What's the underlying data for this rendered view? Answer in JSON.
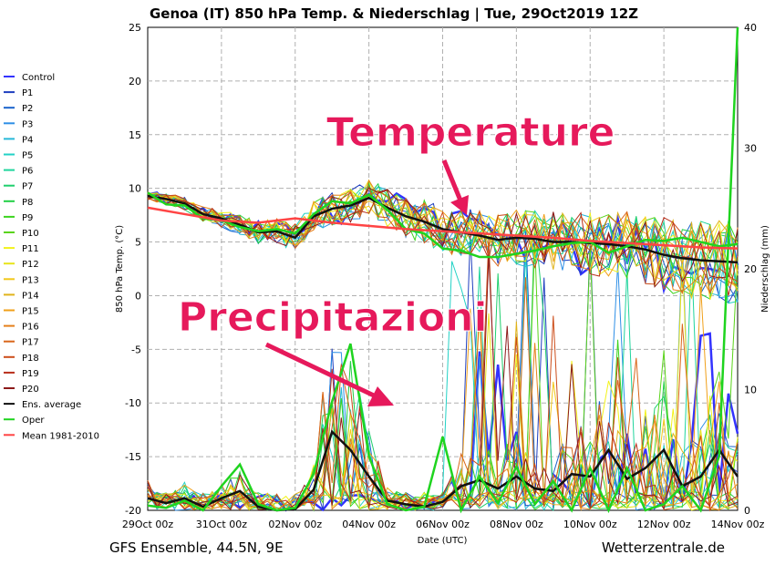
{
  "chart_data": {
    "type": "line",
    "title": "Genoa  (IT)  850 hPa Temp. & Niederschlag | Tue, 29Oct2019 12Z",
    "xlabel": "Date (UTC)",
    "ylabel": "850 hPa Temp. (°C)",
    "y2label": "Niederschlag (mm)",
    "ylim": [
      -20,
      25
    ],
    "y2lim": [
      0,
      40
    ],
    "xlim": [
      0,
      16
    ],
    "grid": true,
    "legend_position": "left",
    "x_tick_labels": [
      "29Oct 00z",
      "31Oct 00z",
      "02Nov 00z",
      "04Nov 00z",
      "06Nov 00z",
      "08Nov 00z",
      "10Nov 00z",
      "12Nov 00z",
      "14Nov 00z"
    ],
    "x_tick_values": [
      0,
      2,
      4,
      6,
      8,
      10,
      12,
      14,
      16
    ],
    "y_ticks": [
      25,
      20,
      15,
      10,
      5,
      0,
      -5,
      -10,
      -15,
      -20
    ],
    "y2_ticks": [
      40,
      30,
      20,
      10,
      0
    ],
    "footer_left": "GFS Ensemble, 44.5N, 9E",
    "footer_right": "Wetterzentrale.de",
    "annotations": [
      {
        "text": "Temperature",
        "color": "#e6195b"
      },
      {
        "text": "Precipitazioni",
        "color": "#e6195b"
      }
    ],
    "series": [
      {
        "name": "Control",
        "color": "#3333ff"
      },
      {
        "name": "P1",
        "color": "#1f3fbf"
      },
      {
        "name": "P2",
        "color": "#1a63cc"
      },
      {
        "name": "P3",
        "color": "#2e8fe6"
      },
      {
        "name": "P4",
        "color": "#27b8d8"
      },
      {
        "name": "P5",
        "color": "#22d2c6"
      },
      {
        "name": "P6",
        "color": "#1fd49c"
      },
      {
        "name": "P7",
        "color": "#1fcf6d"
      },
      {
        "name": "P8",
        "color": "#22cf45"
      },
      {
        "name": "P9",
        "color": "#3cd41f"
      },
      {
        "name": "P10",
        "color": "#5ad41a"
      },
      {
        "name": "P11",
        "color": "#f2f21a"
      },
      {
        "name": "P12",
        "color": "#e8e41a"
      },
      {
        "name": "P13",
        "color": "#f2c81a"
      },
      {
        "name": "P14",
        "color": "#e0b31a"
      },
      {
        "name": "P15",
        "color": "#f0a01a"
      },
      {
        "name": "P16",
        "color": "#e5801a"
      },
      {
        "name": "P17",
        "color": "#d9661a"
      },
      {
        "name": "P18",
        "color": "#cc4d1a"
      },
      {
        "name": "P19",
        "color": "#b82e1a"
      },
      {
        "name": "P20",
        "color": "#8c1a1a"
      },
      {
        "name": "Ens. average",
        "color": "#111111",
        "temp": [
          [
            0,
            9.3
          ],
          [
            0.5,
            9.0
          ],
          [
            1,
            8.6
          ],
          [
            1.5,
            7.6
          ],
          [
            2,
            7.2
          ],
          [
            2.5,
            6.6
          ],
          [
            3,
            5.9
          ],
          [
            3.5,
            6.0
          ],
          [
            4,
            5.4
          ],
          [
            4.5,
            7.4
          ],
          [
            5,
            8.1
          ],
          [
            5.5,
            8.4
          ],
          [
            6,
            9.1
          ],
          [
            6.5,
            8.2
          ],
          [
            7,
            7.4
          ],
          [
            7.5,
            6.9
          ],
          [
            8,
            6.2
          ],
          [
            8.5,
            5.9
          ],
          [
            9,
            5.6
          ],
          [
            9.5,
            5.2
          ],
          [
            10,
            5.4
          ],
          [
            10.5,
            5.3
          ],
          [
            11,
            5.0
          ],
          [
            11.5,
            5.0
          ],
          [
            12,
            4.9
          ],
          [
            12.5,
            4.8
          ],
          [
            13,
            4.6
          ],
          [
            13.5,
            4.3
          ],
          [
            14,
            3.8
          ],
          [
            14.5,
            3.5
          ],
          [
            15,
            3.3
          ],
          [
            15.5,
            3.2
          ],
          [
            16,
            3.1
          ]
        ],
        "precip": [
          [
            0,
            1.0
          ],
          [
            0.5,
            0.6
          ],
          [
            1,
            1.0
          ],
          [
            1.5,
            0.3
          ],
          [
            2,
            1.0
          ],
          [
            2.5,
            1.6
          ],
          [
            3,
            0.3
          ],
          [
            3.5,
            0.0
          ],
          [
            4,
            0.1
          ],
          [
            4.5,
            1.7
          ],
          [
            5,
            6.5
          ],
          [
            5.5,
            5.0
          ],
          [
            6,
            2.8
          ],
          [
            6.5,
            0.8
          ],
          [
            7,
            0.5
          ],
          [
            7.5,
            0.3
          ],
          [
            8,
            0.7
          ],
          [
            8.5,
            2.0
          ],
          [
            9,
            2.5
          ],
          [
            9.5,
            1.8
          ],
          [
            10,
            2.8
          ],
          [
            10.5,
            1.8
          ],
          [
            11,
            1.6
          ],
          [
            11.5,
            3.0
          ],
          [
            12,
            2.8
          ],
          [
            12.5,
            5.0
          ],
          [
            13,
            2.6
          ],
          [
            13.5,
            3.5
          ],
          [
            14,
            5.0
          ],
          [
            14.5,
            2.0
          ],
          [
            15,
            2.8
          ],
          [
            15.5,
            5.0
          ],
          [
            16,
            2.8
          ]
        ]
      },
      {
        "name": "Oper",
        "color": "#1fd41f",
        "temp": [
          [
            0,
            9.6
          ],
          [
            0.5,
            8.5
          ],
          [
            1,
            8.4
          ],
          [
            1.5,
            7.2
          ],
          [
            2,
            7.0
          ],
          [
            2.5,
            6.4
          ],
          [
            3,
            6.0
          ],
          [
            3.5,
            6.2
          ],
          [
            4,
            5.8
          ],
          [
            4.5,
            7.6
          ],
          [
            5,
            8.8
          ],
          [
            5.5,
            8.6
          ],
          [
            6,
            9.4
          ],
          [
            6.5,
            8.0
          ],
          [
            7,
            6.2
          ],
          [
            7.5,
            5.8
          ],
          [
            8,
            4.4
          ],
          [
            8.5,
            4.2
          ],
          [
            9,
            3.6
          ],
          [
            9.5,
            3.6
          ],
          [
            10,
            3.9
          ],
          [
            10.5,
            4.2
          ],
          [
            11,
            4.6
          ],
          [
            11.5,
            4.9
          ],
          [
            12,
            5.0
          ],
          [
            12.5,
            4.0
          ],
          [
            13,
            4.6
          ],
          [
            13.5,
            5.2
          ],
          [
            14,
            5.1
          ],
          [
            14.5,
            5.4
          ],
          [
            15,
            5.0
          ],
          [
            15.5,
            4.6
          ],
          [
            16,
            4.8
          ]
        ],
        "precip": [
          [
            0,
            0.4
          ],
          [
            0.5,
            0.2
          ],
          [
            1,
            0.8
          ],
          [
            1.5,
            0.0
          ],
          [
            2,
            2.0
          ],
          [
            2.5,
            3.8
          ],
          [
            3,
            0.5
          ],
          [
            3.5,
            0.0
          ],
          [
            4,
            0.2
          ],
          [
            4.5,
            3.0
          ],
          [
            5,
            9.0
          ],
          [
            5.5,
            13.8
          ],
          [
            6,
            4.5
          ],
          [
            6.5,
            0.5
          ],
          [
            7,
            0.0
          ],
          [
            7.5,
            0.3
          ],
          [
            8,
            6.1
          ],
          [
            8.5,
            0.0
          ],
          [
            9,
            2.8
          ],
          [
            9.5,
            0.6
          ],
          [
            10,
            3.6
          ],
          [
            10.5,
            0.5
          ],
          [
            11,
            2.4
          ],
          [
            11.5,
            0.0
          ],
          [
            12,
            3.5
          ],
          [
            12.5,
            0.0
          ],
          [
            13,
            3.5
          ],
          [
            13.5,
            0.0
          ],
          [
            14,
            0.5
          ],
          [
            14.5,
            2.0
          ],
          [
            15,
            0.0
          ],
          [
            15.5,
            4.5
          ],
          [
            16,
            40.0
          ]
        ]
      },
      {
        "name": "Mean 1981-2010",
        "color": "#ff4444",
        "temp": [
          [
            0,
            8.2
          ],
          [
            1,
            7.6
          ],
          [
            2,
            7.0
          ],
          [
            3,
            6.8
          ],
          [
            4,
            7.2
          ],
          [
            5,
            6.8
          ],
          [
            6,
            6.5
          ],
          [
            7,
            6.2
          ],
          [
            8,
            6.0
          ],
          [
            9,
            5.8
          ],
          [
            10,
            5.6
          ],
          [
            11,
            5.4
          ],
          [
            12,
            5.1
          ],
          [
            13,
            4.9
          ],
          [
            14,
            4.7
          ],
          [
            15,
            4.5
          ],
          [
            16,
            4.4
          ]
        ]
      }
    ]
  }
}
